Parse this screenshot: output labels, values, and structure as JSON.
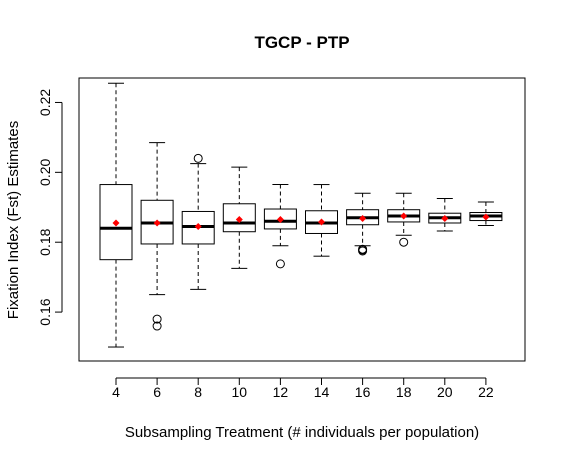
{
  "chart_data": {
    "type": "boxplot",
    "title": "TGCP - PTP",
    "xlabel": "Subsampling Treatment (# individuals per population)",
    "ylabel": "Fixation Index (Fst) Estimates",
    "ylim": [
      0.146,
      0.227
    ],
    "yticks": [
      0.16,
      0.18,
      0.2,
      0.22
    ],
    "ytick_labels": [
      "0.16",
      "0.18",
      "0.20",
      "0.22"
    ],
    "colors": {
      "box": "#000000",
      "median": "#000000",
      "mean": "#ff0000"
    },
    "categories": [
      "4",
      "6",
      "8",
      "10",
      "12",
      "14",
      "16",
      "18",
      "20",
      "22"
    ],
    "boxes": [
      {
        "whisker_low": 0.15,
        "q1": 0.175,
        "median": 0.184,
        "q3": 0.1965,
        "whisker_high": 0.2255,
        "mean": 0.1855,
        "outliers": []
      },
      {
        "whisker_low": 0.165,
        "q1": 0.1795,
        "median": 0.1855,
        "q3": 0.192,
        "whisker_high": 0.2085,
        "mean": 0.1855,
        "outliers": [
          0.158,
          0.156
        ]
      },
      {
        "whisker_low": 0.1665,
        "q1": 0.1795,
        "median": 0.1845,
        "q3": 0.1888,
        "whisker_high": 0.2025,
        "mean": 0.1845,
        "outliers": [
          0.204
        ]
      },
      {
        "whisker_low": 0.1725,
        "q1": 0.183,
        "median": 0.1855,
        "q3": 0.191,
        "whisker_high": 0.2015,
        "mean": 0.1865,
        "outliers": []
      },
      {
        "whisker_low": 0.179,
        "q1": 0.1838,
        "median": 0.186,
        "q3": 0.1895,
        "whisker_high": 0.1965,
        "mean": 0.1865,
        "outliers": [
          0.1738
        ]
      },
      {
        "whisker_low": 0.176,
        "q1": 0.1825,
        "median": 0.1855,
        "q3": 0.189,
        "whisker_high": 0.1965,
        "mean": 0.1858,
        "outliers": []
      },
      {
        "whisker_low": 0.179,
        "q1": 0.185,
        "median": 0.187,
        "q3": 0.1893,
        "whisker_high": 0.194,
        "mean": 0.1868,
        "outliers": [
          0.178,
          0.1775,
          0.1778
        ]
      },
      {
        "whisker_low": 0.182,
        "q1": 0.1858,
        "median": 0.1875,
        "q3": 0.1893,
        "whisker_high": 0.194,
        "mean": 0.1875,
        "outliers": [
          0.18
        ]
      },
      {
        "whisker_low": 0.1832,
        "q1": 0.1855,
        "median": 0.187,
        "q3": 0.1883,
        "whisker_high": 0.1925,
        "mean": 0.1868,
        "outliers": []
      },
      {
        "whisker_low": 0.1848,
        "q1": 0.1862,
        "median": 0.1875,
        "q3": 0.1885,
        "whisker_high": 0.1915,
        "mean": 0.1872,
        "outliers": []
      }
    ]
  }
}
